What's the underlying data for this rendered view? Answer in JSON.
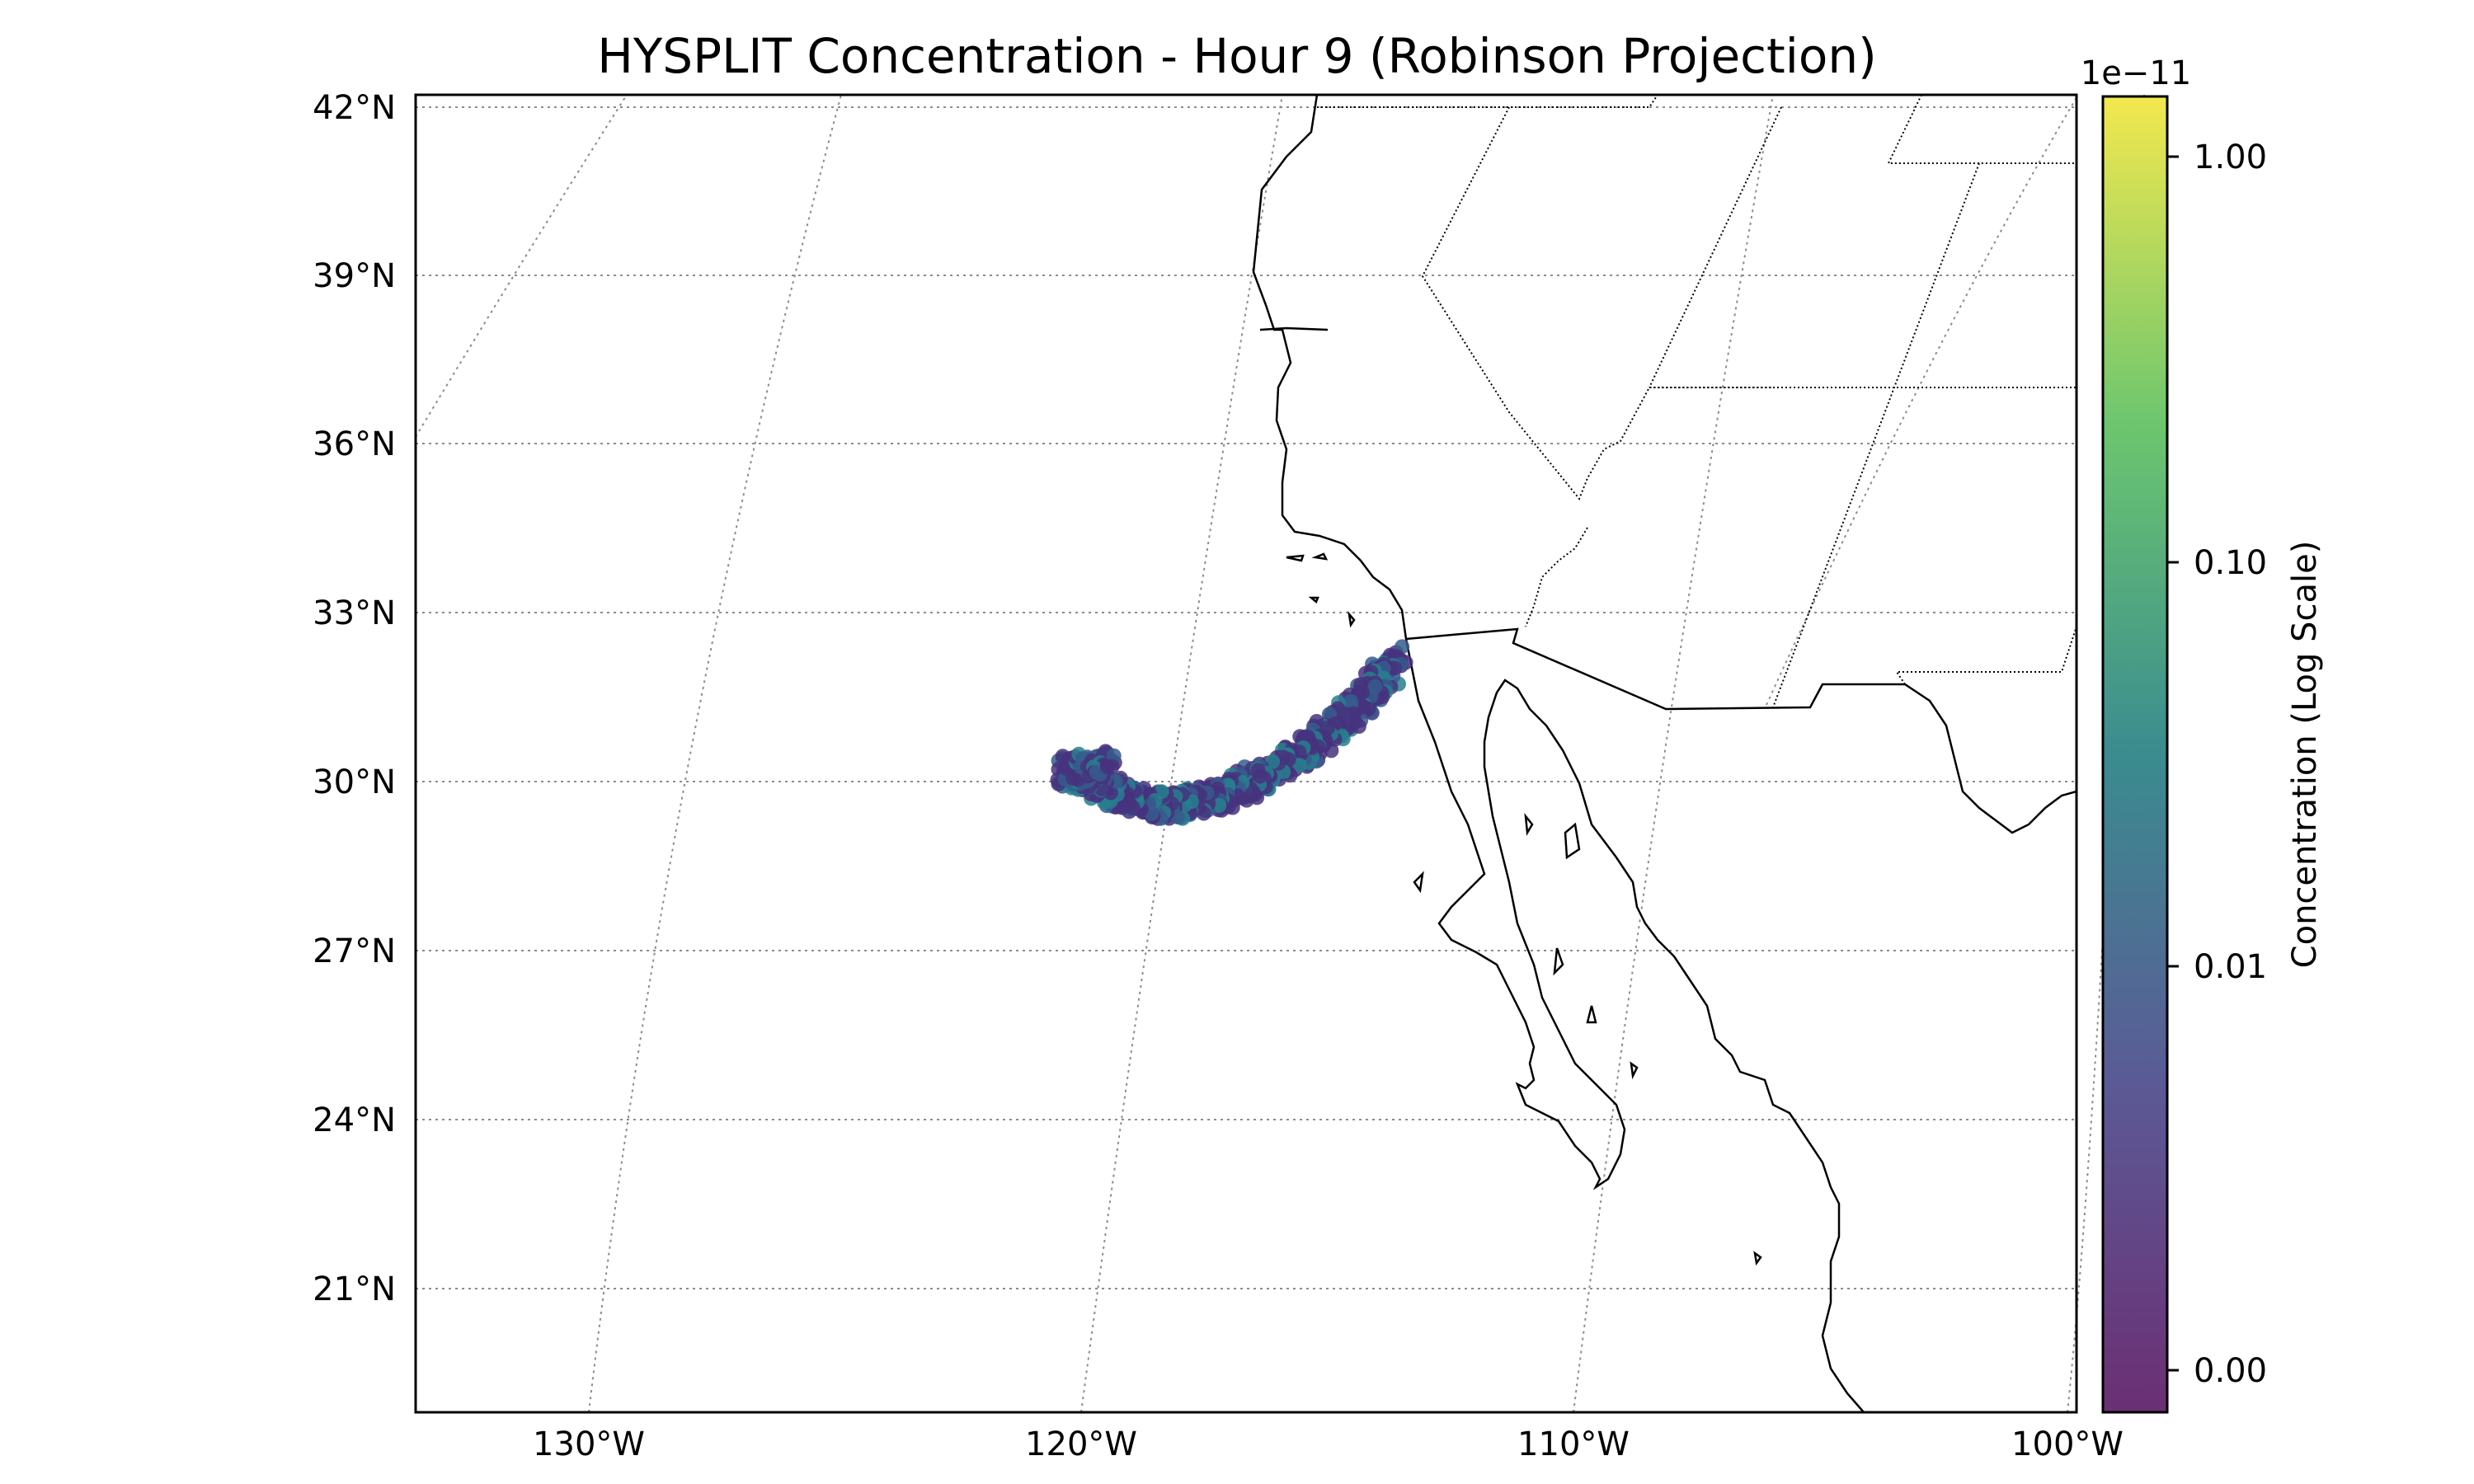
{
  "title": "HYSPLIT Concentration - Hour 9 (Robinson Projection)",
  "lat_labels": [
    "42°N",
    "39°N",
    "36°N",
    "33°N",
    "30°N",
    "27°N",
    "24°N",
    "21°N"
  ],
  "lon_labels": [
    "130°W",
    "120°W",
    "110°W",
    "100°W"
  ],
  "colorbar": {
    "label": "Concentration (Log Scale)",
    "exponent": "1e−11",
    "ticks": [
      "1.00",
      "0.10",
      "0.01",
      "0.00"
    ],
    "colormap": "viridis",
    "colors": [
      "#440154",
      "#3b528b",
      "#21918c",
      "#5ec962",
      "#fde725"
    ]
  },
  "map": {
    "projection": "Robinson",
    "extent_lon": [
      -133.5,
      -99.5
    ],
    "extent_lat": [
      18.5,
      42.2
    ],
    "gridlines": "dotted",
    "features": [
      "coastline",
      "country-borders",
      "state-borders"
    ]
  },
  "plume": {
    "color_low": "#46337e",
    "color_mid": "#365c8d",
    "color_high": "#277f8e",
    "description_points_lonlat": [
      [
        -113.8,
        32.2
      ],
      [
        -114.3,
        31.6
      ],
      [
        -114.9,
        31.0
      ],
      [
        -115.6,
        30.5
      ],
      [
        -116.3,
        30.1
      ],
      [
        -117.0,
        29.8
      ],
      [
        -117.8,
        29.6
      ],
      [
        -118.6,
        29.6
      ],
      [
        -119.3,
        29.8
      ],
      [
        -119.9,
        30.1
      ],
      [
        -120.3,
        30.2
      ],
      [
        -119.5,
        30.4
      ]
    ]
  }
}
